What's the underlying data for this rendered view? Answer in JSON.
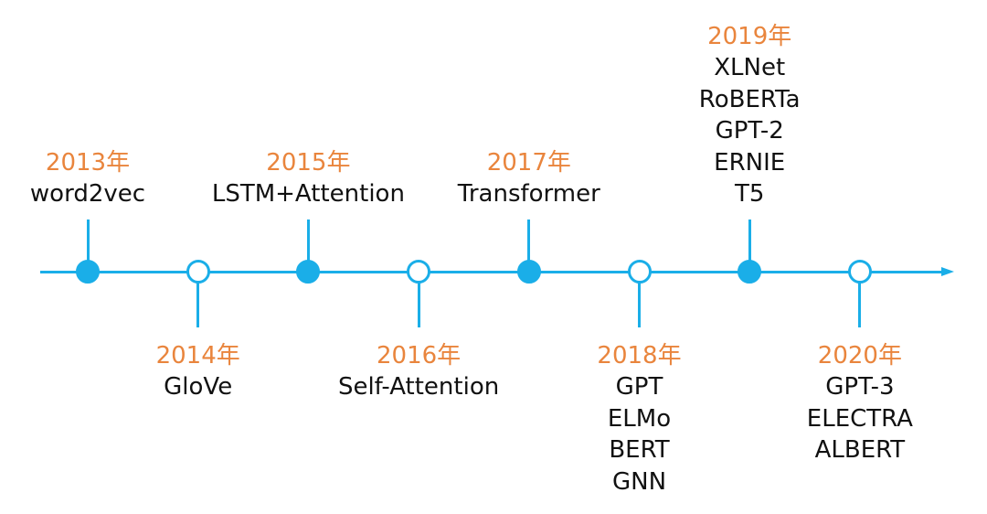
{
  "colors": {
    "axis": "#1aaee8",
    "year": "#e9853d",
    "model": "#111111",
    "background": "#ffffff"
  },
  "events": [
    {
      "year": "2013年",
      "models": [
        "word2vec"
      ]
    },
    {
      "year": "2014年",
      "models": [
        "GloVe"
      ]
    },
    {
      "year": "2015年",
      "models": [
        "LSTM+Attention"
      ]
    },
    {
      "year": "2016年",
      "models": [
        "Self-Attention"
      ]
    },
    {
      "year": "2017年",
      "models": [
        "Transformer"
      ]
    },
    {
      "year": "2018年",
      "models": [
        "GPT",
        "ELMo",
        "BERT",
        "GNN"
      ]
    },
    {
      "year": "2019年",
      "models": [
        "XLNet",
        "RoBERTa",
        "GPT-2",
        "ERNIE",
        "T5"
      ]
    },
    {
      "year": "2020年",
      "models": [
        "GPT-3",
        "ELECTRA",
        "ALBERT"
      ]
    }
  ]
}
